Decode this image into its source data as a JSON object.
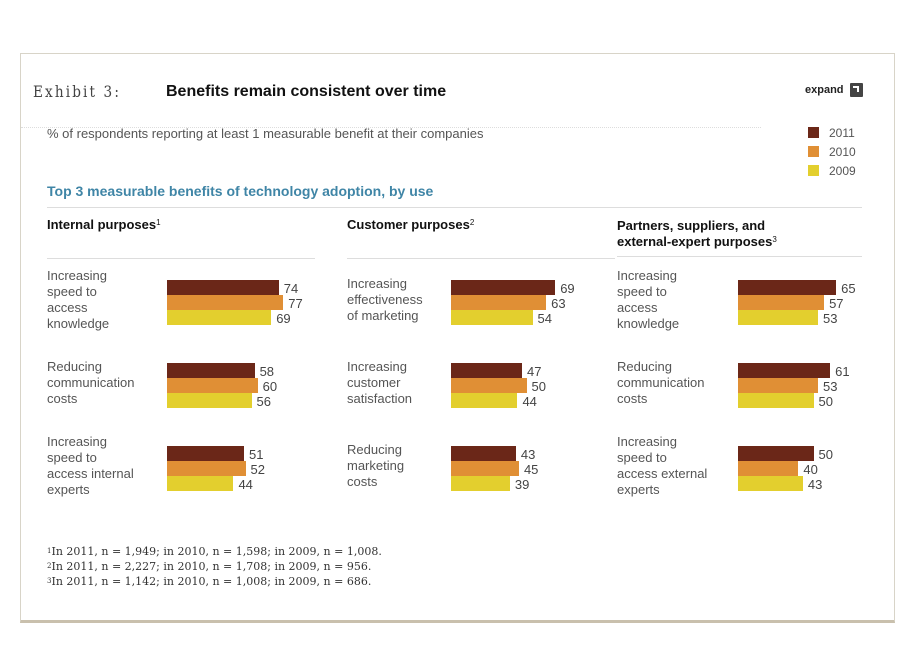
{
  "header": {
    "exhibit_label": "Exhibit 3:",
    "title": "Benefits remain consistent over time",
    "expand_label": "expand"
  },
  "subtitle": "% of respondents reporting at least 1 measurable benefit at their companies",
  "section_title": "Top 3 measurable benefits of technology adoption, by use",
  "colors": {
    "2011": "#6b2718",
    "2010": "#e08f35",
    "2009": "#e3cf2e",
    "accent": "#3f85a6"
  },
  "chart_data": {
    "type": "bar",
    "orientation": "horizontal",
    "title": "Benefits remain consistent over time",
    "subtitle": "% of respondents reporting at least 1 measurable benefit at their companies",
    "xlim": [
      0,
      100
    ],
    "legend": {
      "placement": "top-right",
      "entries": [
        "2011",
        "2010",
        "2009"
      ]
    },
    "series_names": [
      "2011",
      "2010",
      "2009"
    ],
    "panels": [
      {
        "heading": "Internal purposes",
        "footnote_ref": "1",
        "categories": [
          "Increasing speed to access knowledge",
          "Reducing communication costs",
          "Increasing speed to access internal experts"
        ],
        "category_lines": [
          [
            "Increasing",
            "speed to",
            "access",
            "knowledge"
          ],
          [
            "Reducing",
            "communication",
            "costs"
          ],
          [
            "Increasing",
            "speed to",
            "access internal",
            "experts"
          ]
        ],
        "series": [
          {
            "name": "2011",
            "values": [
              74,
              58,
              51
            ]
          },
          {
            "name": "2010",
            "values": [
              77,
              60,
              52
            ]
          },
          {
            "name": "2009",
            "values": [
              69,
              56,
              44
            ]
          }
        ]
      },
      {
        "heading": "Customer purposes",
        "footnote_ref": "2",
        "categories": [
          "Increasing effectiveness of marketing",
          "Increasing customer satisfaction",
          "Reducing marketing costs"
        ],
        "category_lines": [
          [
            "Increasing",
            "effectiveness",
            "of marketing"
          ],
          [
            "Increasing",
            "customer",
            "satisfaction"
          ],
          [
            "Reducing",
            "marketing",
            "costs"
          ]
        ],
        "series": [
          {
            "name": "2011",
            "values": [
              69,
              47,
              43
            ]
          },
          {
            "name": "2010",
            "values": [
              63,
              50,
              45
            ]
          },
          {
            "name": "2009",
            "values": [
              54,
              44,
              39
            ]
          }
        ]
      },
      {
        "heading": "Partners, suppliers, and external-expert purposes",
        "heading_lines": [
          "Partners, suppliers, and",
          "external-expert purposes"
        ],
        "footnote_ref": "3",
        "categories": [
          "Increasing speed to access knowledge",
          "Reducing communication costs",
          "Increasing speed to access external experts"
        ],
        "category_lines": [
          [
            "Increasing",
            "speed to",
            "access",
            "knowledge"
          ],
          [
            "Reducing",
            "communication",
            "costs"
          ],
          [
            "Increasing",
            "speed to",
            "access external",
            "experts"
          ]
        ],
        "series": [
          {
            "name": "2011",
            "values": [
              65,
              61,
              50
            ]
          },
          {
            "name": "2010",
            "values": [
              57,
              53,
              40
            ]
          },
          {
            "name": "2009",
            "values": [
              53,
              50,
              43
            ]
          }
        ]
      }
    ]
  },
  "footnotes": [
    {
      "ref": "1",
      "text": "In 2011, n = 1,949; in 2010, n = 1,598; in 2009, n = 1,008."
    },
    {
      "ref": "2",
      "text": "In 2011, n = 2,227; in 2010, n = 1,708; in 2009, n = 956."
    },
    {
      "ref": "3",
      "text": "In 2011, n = 1,142; in 2010, n =  1,008; in 2009, n = 686."
    }
  ]
}
